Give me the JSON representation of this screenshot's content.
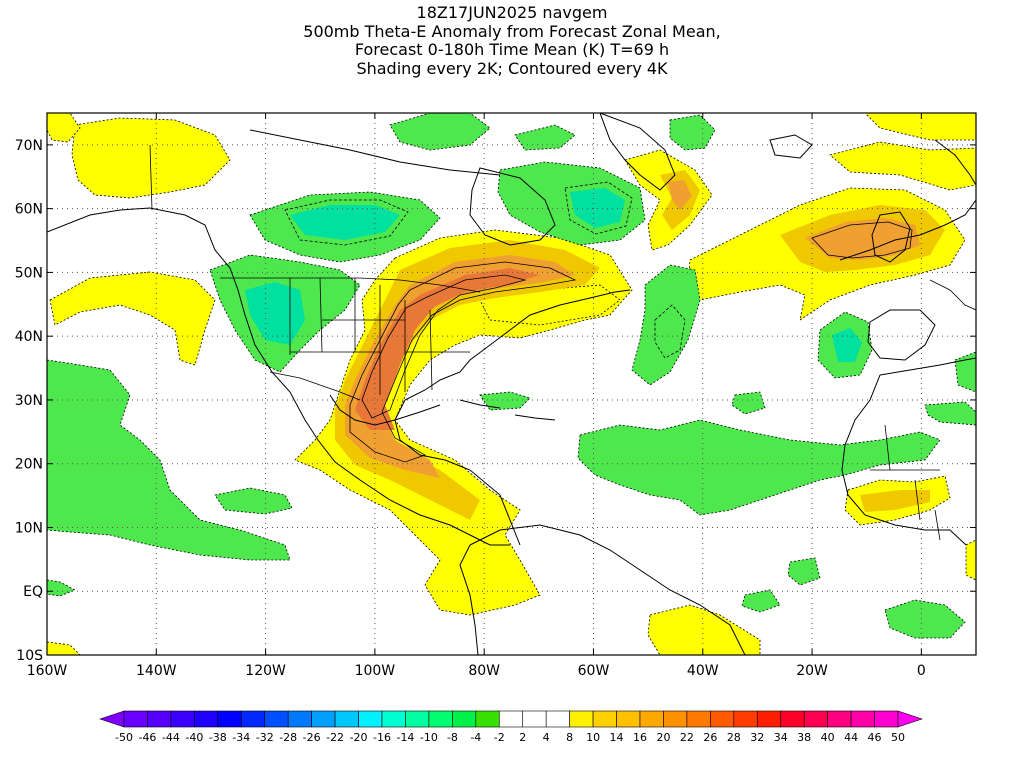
{
  "title": {
    "lines": [
      "18Z17JUN2025 navgem",
      "500mb Theta-E Anomaly from Forecast Zonal Mean,",
      "Forecast 0-180h Time Mean (K) T=69 h",
      "Shading every 2K; Contoured every 4K"
    ]
  },
  "map": {
    "region": "North Atlantic / Americas",
    "lon_range": [
      -160,
      10
    ],
    "lat_range": [
      -10,
      75
    ],
    "lat_labels": [
      "10S",
      "EQ",
      "10N",
      "20N",
      "30N",
      "40N",
      "50N",
      "60N",
      "70N"
    ],
    "lat_values": [
      -10,
      0,
      10,
      20,
      30,
      40,
      50,
      60,
      70
    ],
    "lon_labels": [
      "160W",
      "140W",
      "120W",
      "100W",
      "80W",
      "60W",
      "40W",
      "20W",
      "0"
    ],
    "lon_values": [
      -160,
      -140,
      -120,
      -100,
      -80,
      -60,
      -40,
      -20,
      0
    ],
    "grid": "dotted every 10 degrees"
  },
  "colorbar": {
    "labels": [
      "-50",
      "-46",
      "-44",
      "-40",
      "-38",
      "-34",
      "-32",
      "-28",
      "-26",
      "-22",
      "-20",
      "-16",
      "-14",
      "-10",
      "-8",
      "-4",
      "-2",
      "2",
      "4",
      "8",
      "10",
      "14",
      "16",
      "20",
      "22",
      "26",
      "28",
      "32",
      "34",
      "38",
      "40",
      "44",
      "46",
      "50"
    ],
    "colors": [
      "#8000ff",
      "#6a00ff",
      "#5500ff",
      "#3a00ff",
      "#1e00ff",
      "#0000ff",
      "#0028ff",
      "#0050ff",
      "#0078ff",
      "#00a0ff",
      "#00c8ff",
      "#00f0ff",
      "#00ffd0",
      "#00ffa0",
      "#00ff70",
      "#00f04a",
      "#38e000",
      "#ffffff",
      "#ffffff",
      "#ffffff",
      "#fff000",
      "#ffd000",
      "#ffc000",
      "#ffa800",
      "#ff9000",
      "#ff7800",
      "#ff5a00",
      "#ff3c00",
      "#ff1e00",
      "#ff0028",
      "#ff0050",
      "#ff0080",
      "#ff00a8",
      "#ff00d0",
      "#ff00f0"
    ]
  },
  "colors": {
    "anomaly_neg": "#4ee84e",
    "anomaly_neg_strong": "#00e0a0",
    "anomaly_pos_weak": "#ffff00",
    "anomaly_pos_mid": "#f0c800",
    "anomaly_pos_high": "#f0a030",
    "anomaly_pos_strong": "#e87838"
  }
}
